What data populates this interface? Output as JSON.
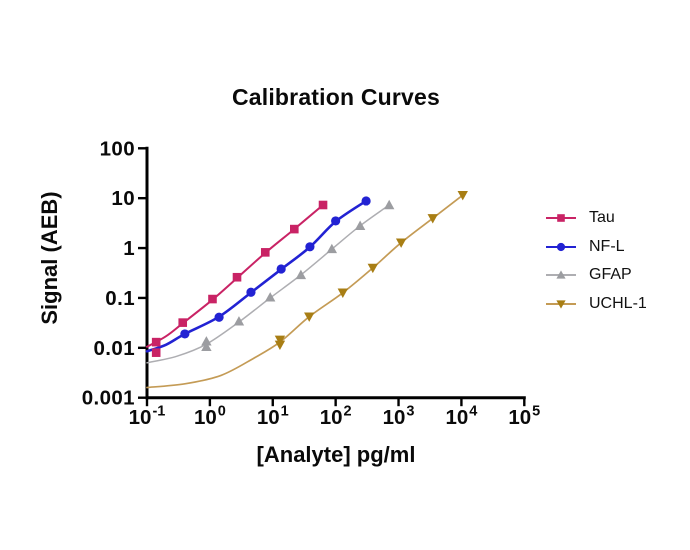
{
  "chart_data": {
    "type": "line",
    "title": "Calibration Curves",
    "xlabel": "[Analyte] pg/ml",
    "ylabel": "Signal (AEB)",
    "x_scale": "log",
    "y_scale": "log",
    "xlim": [
      0.1,
      100000
    ],
    "ylim": [
      0.001,
      100
    ],
    "grid": false,
    "legend_position": "right-outside",
    "axis_color": "#000000",
    "background_color": "#ffffff",
    "x_ticks": [
      {
        "mantissa": "10",
        "exponent": "-1"
      },
      {
        "mantissa": "10",
        "exponent": "0"
      },
      {
        "mantissa": "10",
        "exponent": "1"
      },
      {
        "mantissa": "10",
        "exponent": "2"
      },
      {
        "mantissa": "10",
        "exponent": "3"
      },
      {
        "mantissa": "10",
        "exponent": "4"
      },
      {
        "mantissa": "10",
        "exponent": "5"
      }
    ],
    "y_ticks": [
      "100",
      "10",
      "1",
      "0.1",
      "0.01",
      "0.001"
    ],
    "series": [
      {
        "name": "Tau",
        "marker": "square",
        "marker_color": "#C92365",
        "line_color": "#C92365",
        "line_width": 2.0,
        "points": [
          [
            0.14,
            0.013
          ],
          [
            0.14,
            0.008
          ],
          [
            0.37,
            0.032
          ],
          [
            1.1,
            0.095
          ],
          [
            2.7,
            0.26
          ],
          [
            7.6,
            0.82
          ],
          [
            22,
            2.4
          ],
          [
            63,
            7.3
          ]
        ],
        "fit_curve": [
          [
            0.1,
            0.0105
          ],
          [
            0.2,
            0.017
          ],
          [
            0.37,
            0.031
          ],
          [
            1.1,
            0.092
          ],
          [
            2.7,
            0.25
          ],
          [
            7.6,
            0.8
          ],
          [
            22,
            2.4
          ],
          [
            63,
            7.3
          ]
        ]
      },
      {
        "name": "NF-L",
        "marker": "circle",
        "marker_color": "#2222D3",
        "line_color": "#2222D3",
        "line_width": 2.6,
        "points": [
          [
            0.4,
            0.019
          ],
          [
            1.4,
            0.041
          ],
          [
            4.5,
            0.13
          ],
          [
            13.6,
            0.38
          ],
          [
            39,
            1.06
          ],
          [
            100,
            3.5
          ],
          [
            305,
            8.8
          ]
        ],
        "fit_curve": [
          [
            0.1,
            0.0085
          ],
          [
            0.2,
            0.0115
          ],
          [
            0.4,
            0.019
          ],
          [
            1.4,
            0.042
          ],
          [
            4.5,
            0.128
          ],
          [
            13.6,
            0.375
          ],
          [
            39,
            1.05
          ],
          [
            100,
            3.4
          ],
          [
            305,
            8.8
          ]
        ]
      },
      {
        "name": "GFAP",
        "marker": "triangle-up",
        "marker_color": "#9C9DA1",
        "line_color": "#AEAEB2",
        "line_width": 1.5,
        "points": [
          [
            0.88,
            0.0135
          ],
          [
            0.88,
            0.0105
          ],
          [
            2.9,
            0.034
          ],
          [
            9.1,
            0.103
          ],
          [
            28,
            0.29
          ],
          [
            87,
            0.96
          ],
          [
            245,
            2.8
          ],
          [
            710,
            7.3
          ]
        ],
        "fit_curve": [
          [
            0.1,
            0.005
          ],
          [
            0.3,
            0.0068
          ],
          [
            0.88,
            0.0118
          ],
          [
            2.9,
            0.033
          ],
          [
            9.1,
            0.1
          ],
          [
            28,
            0.29
          ],
          [
            87,
            0.95
          ],
          [
            245,
            2.8
          ],
          [
            710,
            7.3
          ]
        ]
      },
      {
        "name": "UCHL-1",
        "marker": "triangle-down",
        "marker_color": "#A87E14",
        "line_color": "#C49B55",
        "line_width": 1.7,
        "points": [
          [
            13,
            0.0145
          ],
          [
            13,
            0.0115
          ],
          [
            38,
            0.042
          ],
          [
            130,
            0.127
          ],
          [
            390,
            0.4
          ],
          [
            1100,
            1.28
          ],
          [
            3500,
            3.95
          ],
          [
            10500,
            11.5
          ]
        ],
        "fit_curve": [
          [
            0.1,
            0.0016
          ],
          [
            0.4,
            0.0019
          ],
          [
            1.5,
            0.0028
          ],
          [
            5,
            0.0062
          ],
          [
            13,
            0.013
          ],
          [
            38,
            0.042
          ],
          [
            130,
            0.127
          ],
          [
            390,
            0.4
          ],
          [
            1100,
            1.28
          ],
          [
            3500,
            3.95
          ],
          [
            10500,
            11.5
          ]
        ]
      }
    ]
  }
}
